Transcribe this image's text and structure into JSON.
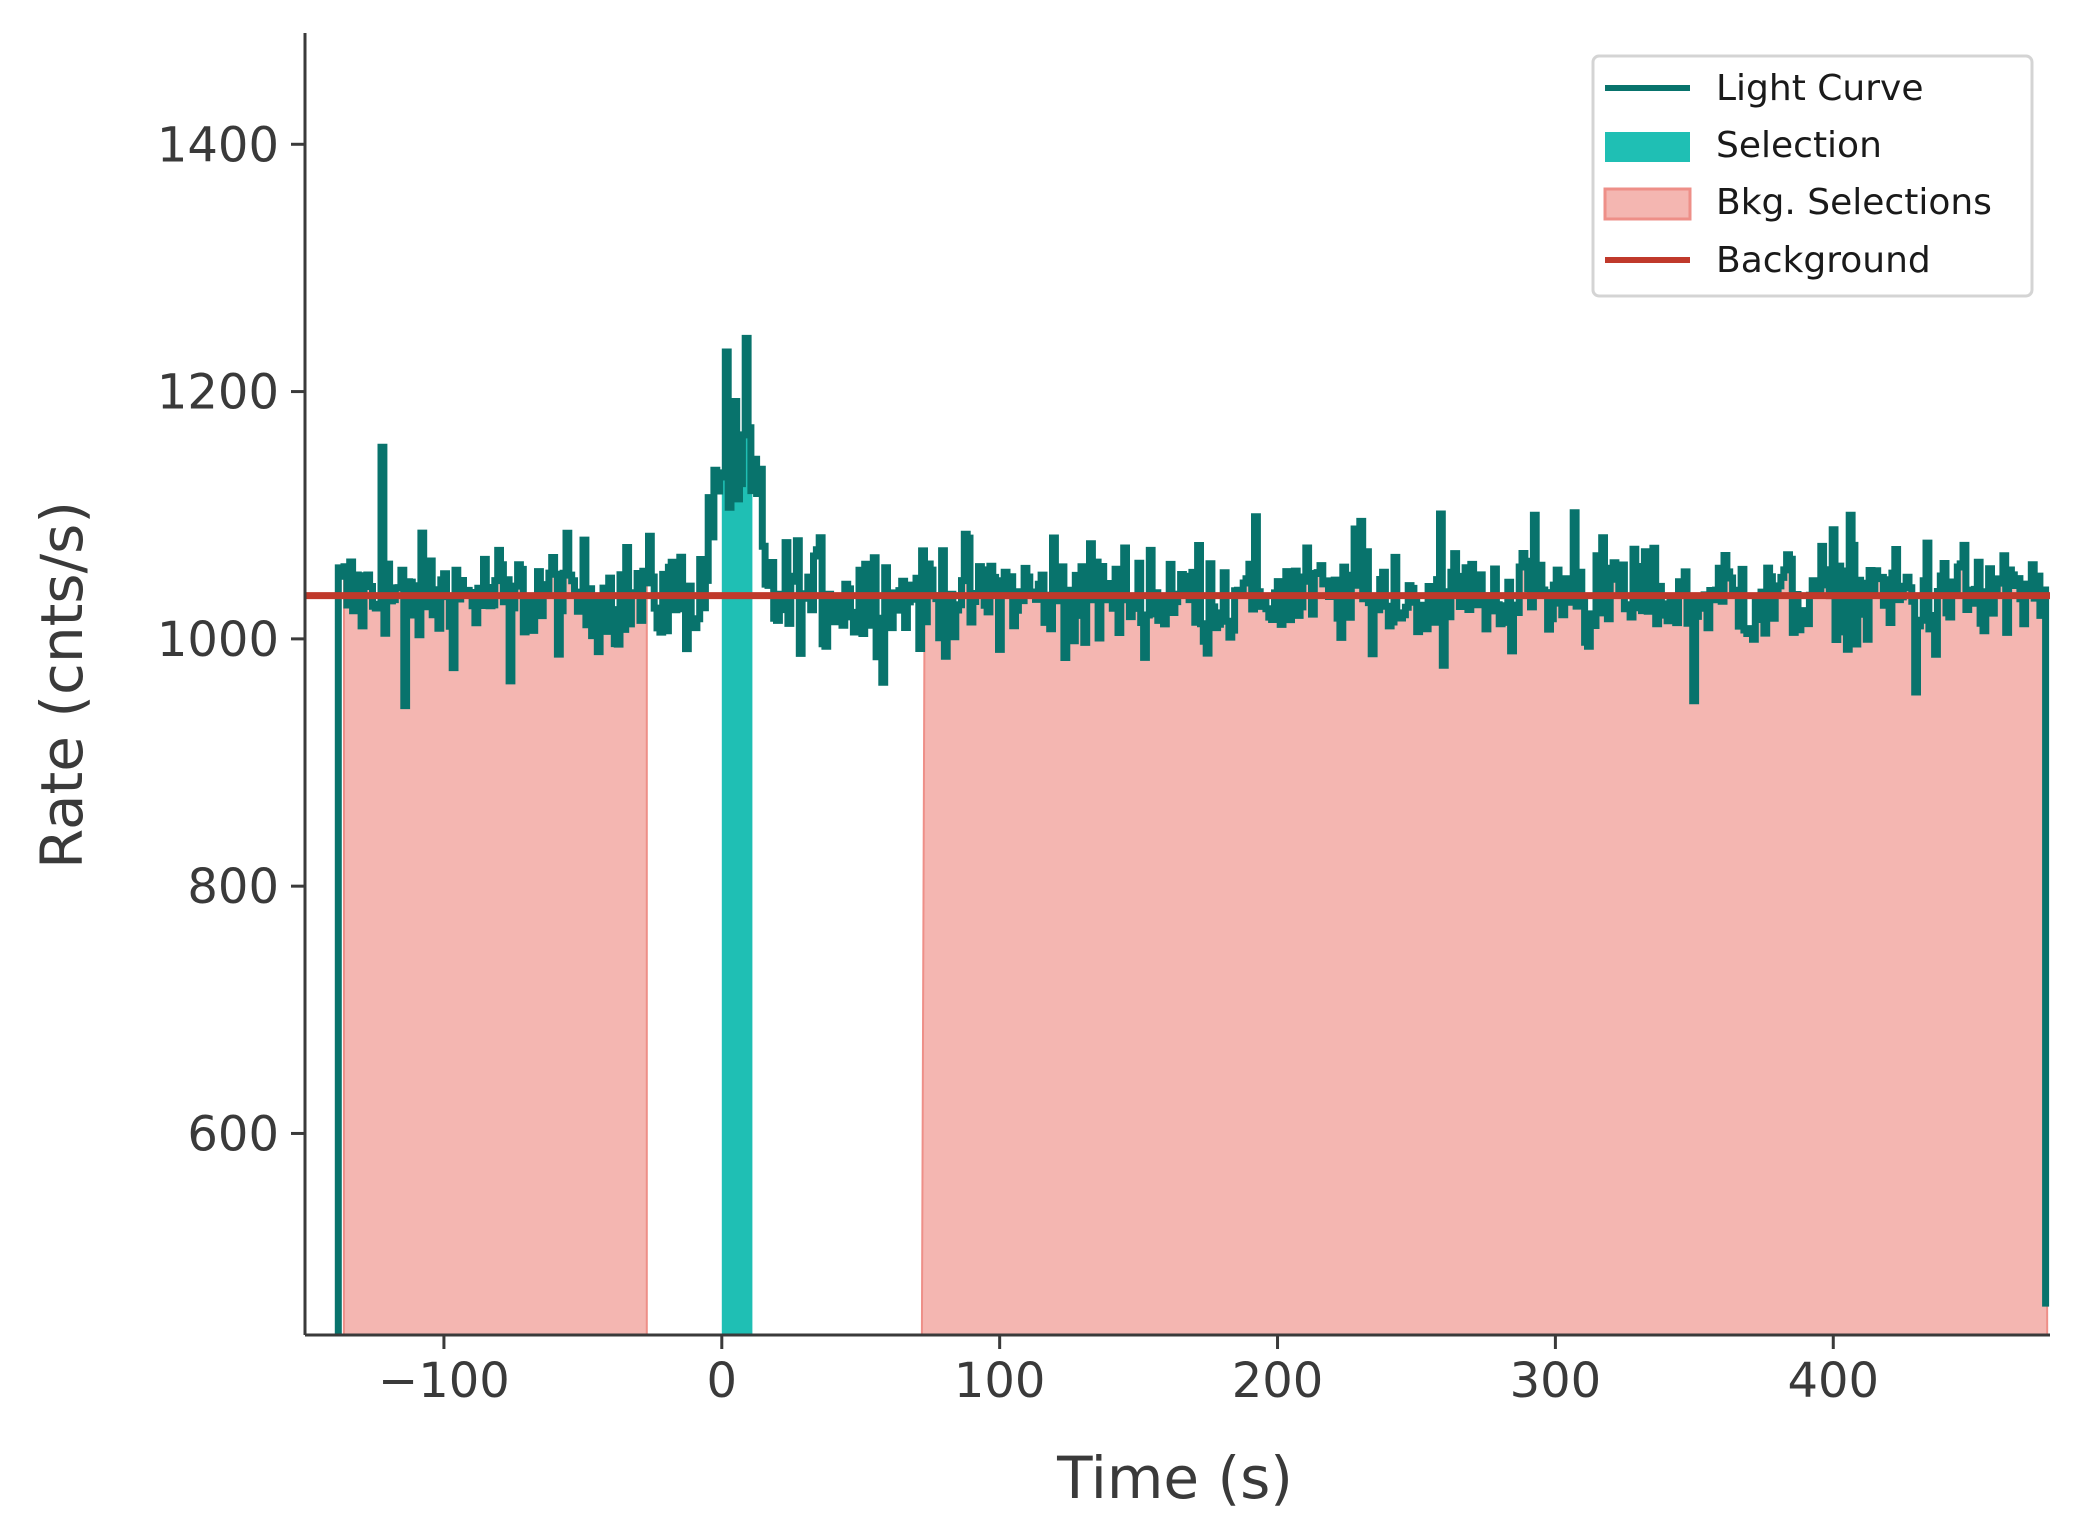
{
  "chart_data": {
    "type": "line",
    "title": "",
    "xlabel": "Time (s)",
    "ylabel": "Rate (cnts/s)",
    "xlim": [
      -150,
      478
    ],
    "ylim": [
      437,
      1490
    ],
    "xticks": [
      -100,
      0,
      100,
      200,
      300,
      400
    ],
    "xtick_labels": [
      "−100",
      "0",
      "100",
      "200",
      "300",
      "400"
    ],
    "yticks": [
      600,
      800,
      1000,
      1200,
      1400
    ],
    "ytick_labels": [
      "600",
      "800",
      "1000",
      "1200",
      "1400"
    ],
    "grid": false,
    "legend_position": "top-right",
    "colors": {
      "light_curve": "#08736c",
      "selection": "#1fbfb4",
      "bkg_selection_fill": "#f4b6b1",
      "bkg_selection_edge": "#ee8f88",
      "background": "#c0392b",
      "axis": "#3a3a3a"
    },
    "series": [
      {
        "name": "Light Curve",
        "kind": "step",
        "x_start": -138,
        "x_end": 476,
        "bin_width": 1.024,
        "base_level": 1035,
        "noise_amplitude": 40,
        "leading_drop_to": 437,
        "trailing_drop_to": 460,
        "peaks": [
          {
            "x": -123,
            "y": 1155
          },
          {
            "x": 1,
            "y": 1232
          },
          {
            "x": 4,
            "y": 1192
          },
          {
            "x": 8,
            "y": 1243
          },
          {
            "x": 7,
            "y": 1165
          },
          {
            "x": 258,
            "y": 1101
          },
          {
            "x": 306,
            "y": 1102
          },
          {
            "x": 292,
            "y": 1100
          },
          {
            "x": 230,
            "y": 1095
          },
          {
            "x": 406,
            "y": 1100
          }
        ],
        "dips": [
          {
            "x": -114,
            "y": 946
          },
          {
            "x": -77,
            "y": 966
          },
          {
            "x": 349,
            "y": 950
          },
          {
            "x": 429,
            "y": 957
          }
        ]
      },
      {
        "name": "Selection",
        "kind": "span",
        "x_range": [
          0,
          11
        ]
      },
      {
        "name": "Bkg. Selections",
        "kind": "span",
        "ranges": [
          [
            -136,
            -27
          ],
          [
            72,
            477
          ]
        ]
      },
      {
        "name": "Background",
        "kind": "hline",
        "y": 1035
      }
    ],
    "legend": [
      "Light Curve",
      "Selection",
      "Bkg. Selections",
      "Background"
    ]
  }
}
